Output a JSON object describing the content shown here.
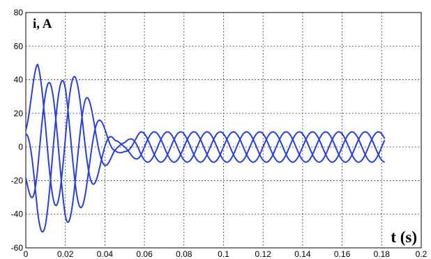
{
  "chart_data": {
    "type": "line",
    "title": "",
    "ylabel": "i, A",
    "xlabel": "t (s)",
    "xlim": [
      0,
      0.2
    ],
    "ylim": [
      -60,
      80
    ],
    "xticks": [
      0,
      0.02,
      0.04,
      0.06,
      0.08,
      0.1,
      0.12,
      0.14,
      0.16,
      0.18,
      0.2
    ],
    "xtick_labels": [
      "0",
      "0.02",
      "0.04",
      "0.06",
      "0.08",
      "0.1",
      "0.12",
      "0.14",
      "0.16",
      "0.18",
      "0.2"
    ],
    "yticks": [
      -60,
      -40,
      -20,
      0,
      20,
      40,
      60,
      80
    ],
    "ytick_labels": [
      "-60",
      "-40",
      "-20",
      "0",
      "20",
      "40",
      "60",
      "80"
    ],
    "grid": true,
    "grid_style": "dotted",
    "line_color": "#2a3fd6",
    "frequency_hz": 50,
    "x_end": 0.1815,
    "series": [
      {
        "phase_deg": 0,
        "amplitude": [
          [
            0,
            12
          ],
          [
            0.006,
            40
          ],
          [
            0.02,
            45
          ],
          [
            0.03,
            32
          ],
          [
            0.038,
            16
          ],
          [
            0.045,
            4
          ],
          [
            0.05,
            3
          ],
          [
            0.058,
            9
          ],
          [
            0.07,
            9
          ],
          [
            0.1815,
            9
          ]
        ],
        "offset": [
          [
            0,
            10
          ],
          [
            0.01,
            12
          ],
          [
            0.02,
            5
          ],
          [
            0.03,
            1
          ],
          [
            0.045,
            0
          ],
          [
            0.1815,
            0
          ]
        ]
      },
      {
        "phase_deg": -120,
        "amplitude": [
          [
            0,
            14
          ],
          [
            0.006,
            40
          ],
          [
            0.02,
            45
          ],
          [
            0.03,
            32
          ],
          [
            0.038,
            16
          ],
          [
            0.045,
            4
          ],
          [
            0.05,
            3
          ],
          [
            0.058,
            9
          ],
          [
            0.07,
            9
          ],
          [
            0.1815,
            9
          ]
        ],
        "offset": [
          [
            0,
            -6
          ],
          [
            0.01,
            -4
          ],
          [
            0.02,
            -2
          ],
          [
            0.03,
            0
          ],
          [
            0.045,
            0
          ],
          [
            0.1815,
            0
          ]
        ]
      },
      {
        "phase_deg": 120,
        "amplitude": [
          [
            0,
            18
          ],
          [
            0.006,
            40
          ],
          [
            0.02,
            45
          ],
          [
            0.03,
            32
          ],
          [
            0.038,
            16
          ],
          [
            0.045,
            4
          ],
          [
            0.05,
            3
          ],
          [
            0.058,
            9
          ],
          [
            0.07,
            9
          ],
          [
            0.1815,
            9
          ]
        ],
        "offset": [
          [
            0,
            -8
          ],
          [
            0.01,
            -10
          ],
          [
            0.02,
            -4
          ],
          [
            0.03,
            -1
          ],
          [
            0.045,
            0
          ],
          [
            0.1815,
            0
          ]
        ]
      }
    ]
  }
}
